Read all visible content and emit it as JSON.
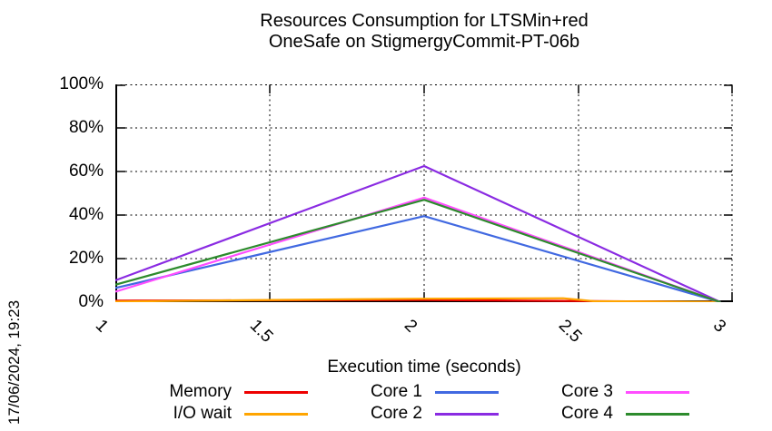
{
  "timestamp": "17/06/2024, 19:23",
  "chart_data": {
    "type": "line",
    "title_line1": "Resources Consumption for LTSMin+red",
    "title_line2": "OneSafe on StigmergyCommit-PT-06b",
    "xlabel": "Execution time (seconds)",
    "xlim": [
      1,
      3
    ],
    "ylim": [
      0,
      100
    ],
    "grid": true,
    "grid_color": "#000000",
    "axis_color": "#000000",
    "x_ticks": [
      {
        "label": "1",
        "value": 1
      },
      {
        "label": "1.5",
        "value": 1.5
      },
      {
        "label": "2",
        "value": 2
      },
      {
        "label": "2.5",
        "value": 2.5
      },
      {
        "label": "3",
        "value": 3
      }
    ],
    "y_ticks": [
      {
        "label": "0%",
        "value": 0
      },
      {
        "label": "20%",
        "value": 20
      },
      {
        "label": "40%",
        "value": 40
      },
      {
        "label": "60%",
        "value": 60
      },
      {
        "label": "80%",
        "value": 80
      },
      {
        "label": "100%",
        "value": 100
      }
    ],
    "legend_position": "bottom",
    "series": [
      {
        "name": "Memory",
        "color": "#ee0000",
        "points": [
          [
            1,
            0.7
          ],
          [
            2,
            1.0
          ],
          [
            2.96,
            0.1
          ]
        ]
      },
      {
        "name": "I/O wait",
        "color": "#ffa500",
        "points": [
          [
            1,
            0.3
          ],
          [
            1.5,
            1.0
          ],
          [
            2,
            1.6
          ],
          [
            2.45,
            1.8
          ],
          [
            2.55,
            0.4
          ],
          [
            2.96,
            0.1
          ]
        ]
      },
      {
        "name": "Core 1",
        "color": "#4169e1",
        "points": [
          [
            1,
            6.5
          ],
          [
            2,
            39.5
          ],
          [
            2.96,
            0
          ]
        ]
      },
      {
        "name": "Core 2",
        "color": "#8a2be2",
        "points": [
          [
            1,
            10.0
          ],
          [
            2,
            62.5
          ],
          [
            2.96,
            0
          ]
        ]
      },
      {
        "name": "Core 3",
        "color": "#ff4dff",
        "points": [
          [
            1,
            4.8
          ],
          [
            2,
            48.0
          ],
          [
            2.96,
            0
          ]
        ]
      },
      {
        "name": "Core 4",
        "color": "#2d8b2d",
        "points": [
          [
            1,
            8.0
          ],
          [
            2,
            47.0
          ],
          [
            2.96,
            0
          ]
        ]
      }
    ]
  }
}
